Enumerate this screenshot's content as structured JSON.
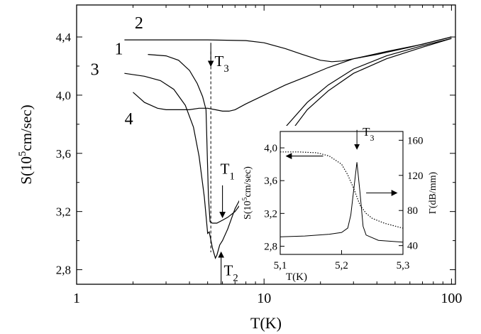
{
  "chart_data": [
    {
      "type": "line",
      "xlabel": "T(K)",
      "ylabel": "S(10",
      "ylabel_sup": "5",
      "ylabel_tail": "cm/sec)",
      "xscale": "log",
      "xlim": [
        1,
        105
      ],
      "ylim": [
        2.7,
        4.62
      ],
      "x_ticks": [
        {
          "v": 1,
          "label": "1"
        },
        {
          "v": 10,
          "label": "10"
        },
        {
          "v": 100,
          "label": "100"
        }
      ],
      "y_ticks": [
        {
          "v": 2.8,
          "label": "2,8"
        },
        {
          "v": 3.2,
          "label": "3,2"
        },
        {
          "v": 3.6,
          "label": "3,6"
        },
        {
          "v": 4.0,
          "label": "4,0"
        },
        {
          "v": 4.4,
          "label": "4,4"
        }
      ],
      "series": [
        {
          "name": "1",
          "x": [
            2.4,
            3.0,
            3.5,
            4.0,
            4.4,
            4.7,
            4.9,
            5.05,
            5.15,
            5.3,
            5.6,
            6.0,
            6.4,
            7,
            8,
            10,
            13,
            17,
            22,
            30,
            45,
            70,
            100
          ],
          "y": [
            4.28,
            4.27,
            4.24,
            4.17,
            4.08,
            3.99,
            3.9,
            3.3,
            3.13,
            3.12,
            3.12,
            3.14,
            3.16,
            3.2,
            3.3,
            3.5,
            3.7,
            3.9,
            4.03,
            4.15,
            4.25,
            4.33,
            4.39
          ]
        },
        {
          "name": "2",
          "x": [
            1.8,
            3,
            5,
            8,
            10,
            13,
            16,
            20,
            23,
            26,
            30,
            40,
            60,
            100
          ],
          "y": [
            4.38,
            4.38,
            4.38,
            4.375,
            4.36,
            4.32,
            4.28,
            4.24,
            4.23,
            4.235,
            4.25,
            4.28,
            4.33,
            4.4
          ]
        },
        {
          "name": "3",
          "x": [
            1.8,
            2.3,
            2.8,
            3.3,
            3.8,
            4.2,
            4.5,
            4.8,
            5.0,
            5.1,
            5.3,
            5.5,
            5.6,
            5.8,
            6.0,
            6.4,
            7,
            8,
            10,
            13,
            17,
            22,
            30,
            45,
            70,
            100
          ],
          "y": [
            4.15,
            4.13,
            4.1,
            4.04,
            3.93,
            3.78,
            3.58,
            3.3,
            3.05,
            3.06,
            2.95,
            2.88,
            2.9,
            2.97,
            3.0,
            3.08,
            3.22,
            3.36,
            3.58,
            3.78,
            3.95,
            4.07,
            4.18,
            4.27,
            4.34,
            4.39
          ]
        },
        {
          "name": "4",
          "x": [
            2.0,
            2.3,
            2.7,
            3.0,
            3.5,
            4.0,
            4.5,
            5.0,
            5.5,
            6.0,
            6.5,
            7,
            8,
            10,
            13,
            17,
            22,
            30,
            45,
            70,
            100
          ],
          "y": [
            4.02,
            3.95,
            3.91,
            3.9,
            3.9,
            3.9,
            3.91,
            3.91,
            3.9,
            3.89,
            3.89,
            3.9,
            3.94,
            4.0,
            4.07,
            4.13,
            4.19,
            4.25,
            4.3,
            4.35,
            4.4
          ]
        }
      ],
      "curve_labels": [
        {
          "text": "2",
          "x": 2.15,
          "y": 4.46
        },
        {
          "text": "1",
          "x": 1.68,
          "y": 4.28
        },
        {
          "text": "3",
          "x": 1.25,
          "y": 4.14
        },
        {
          "text": "4",
          "x": 1.9,
          "y": 3.8
        }
      ],
      "annotations": [
        {
          "label": "T",
          "sub": "3",
          "arrow_x": 5.2,
          "arrow_y_from": 4.36,
          "arrow_y_to": 4.2,
          "text_x": 5.45,
          "text_y": 4.2
        },
        {
          "label": "T",
          "sub": "1",
          "arrow_x": 6.0,
          "arrow_y_from": 3.38,
          "arrow_y_to": 3.16,
          "text_x": 5.85,
          "text_y": 3.46
        },
        {
          "label": "T",
          "sub": "2",
          "arrow_x": 5.9,
          "arrow_y_from": 2.7,
          "arrow_y_to": 2.92,
          "text_x": 6.1,
          "text_y": 2.76
        }
      ],
      "dashed_line_x": 5.2
    },
    {
      "type": "line",
      "inset": true,
      "xlabel": "T(K)",
      "ylabel": "S(10",
      "ylabel_sup": "5",
      "ylabel_tail": "cm/sec)",
      "ylabel_right": "Γ(dB/mm)",
      "xlim": [
        5.1,
        5.3
      ],
      "ylim": [
        2.7,
        4.2
      ],
      "y2lim": [
        30,
        170
      ],
      "x_ticks": [
        {
          "v": 5.1,
          "label": "5,1"
        },
        {
          "v": 5.2,
          "label": "5,2"
        },
        {
          "v": 5.3,
          "label": "5,3"
        }
      ],
      "y_ticks": [
        {
          "v": 2.8,
          "label": "2,8"
        },
        {
          "v": 3.2,
          "label": "3,2"
        },
        {
          "v": 3.6,
          "label": "3,6"
        },
        {
          "v": 4.0,
          "label": "4,0"
        }
      ],
      "y2_ticks": [
        {
          "v": 40,
          "label": "40"
        },
        {
          "v": 80,
          "label": "80"
        },
        {
          "v": 120,
          "label": "120"
        },
        {
          "v": 160,
          "label": "160"
        }
      ],
      "series": [
        {
          "name": "S",
          "axis": "left",
          "style": "dotted",
          "x": [
            5.1,
            5.13,
            5.16,
            5.18,
            5.2,
            5.21,
            5.22,
            5.225,
            5.23,
            5.24,
            5.25,
            5.27,
            5.3
          ],
          "y": [
            3.95,
            3.95,
            3.94,
            3.9,
            3.8,
            3.67,
            3.5,
            3.4,
            3.3,
            3.2,
            3.14,
            3.08,
            3.02
          ]
        },
        {
          "name": "Γ",
          "axis": "right",
          "style": "solid",
          "x": [
            5.1,
            5.14,
            5.18,
            5.2,
            5.21,
            5.215,
            5.22,
            5.225,
            5.23,
            5.235,
            5.24,
            5.26,
            5.3
          ],
          "y": [
            50,
            51,
            53,
            55,
            60,
            75,
            105,
            135,
            100,
            62,
            52,
            46,
            44
          ]
        }
      ],
      "annotations": [
        {
          "label": "T",
          "sub": "3",
          "arrow_x": 5.225,
          "arrow_y_from": 4.15,
          "arrow_y_to": 4.02
        }
      ],
      "axis_arrows": [
        {
          "axis": "left",
          "x_from": 5.17,
          "x_to": 5.11,
          "y": 3.9
        },
        {
          "axis": "right",
          "x_from": 5.24,
          "x_to": 5.29,
          "y": 3.45
        }
      ]
    }
  ]
}
